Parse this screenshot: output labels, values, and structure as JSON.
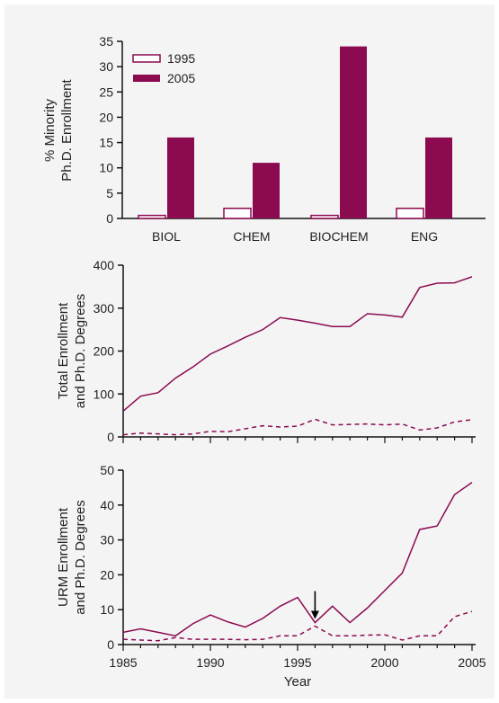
{
  "colors": {
    "accent": "#8b0a50",
    "panel_bg": "#f4f4f4",
    "axis": "#111111"
  },
  "chart_data": [
    {
      "type": "bar",
      "ylabel_lines": [
        "% Minority",
        "Ph.D. Enrollment"
      ],
      "ylim": [
        0,
        35
      ],
      "yticks": [
        "0",
        "5",
        "10",
        "15",
        "20",
        "25",
        "30",
        "35"
      ],
      "categories": [
        "BIOL",
        "CHEM",
        "BIOCHEM",
        "ENG"
      ],
      "series": [
        {
          "name": "1995",
          "values": [
            0.6,
            2.0,
            0.6,
            2.0
          ],
          "style": "outline"
        },
        {
          "name": "2005",
          "values": [
            16,
            11,
            34,
            16
          ],
          "style": "filled"
        }
      ],
      "legend": "top-left",
      "grid": false
    },
    {
      "type": "line",
      "ylabel_lines": [
        "Total Enrollment",
        "and Ph.D. Degrees"
      ],
      "ylim": [
        0,
        400
      ],
      "yticks": [
        "0",
        "100",
        "200",
        "300",
        "400"
      ],
      "x": [
        1985,
        1986,
        1987,
        1988,
        1989,
        1990,
        1991,
        1992,
        1993,
        1994,
        1995,
        1996,
        1997,
        1998,
        1999,
        2000,
        2001,
        2002,
        2003,
        2004,
        2005
      ],
      "series": [
        {
          "style": "solid",
          "values": [
            60,
            95,
            103,
            137,
            163,
            193,
            212,
            232,
            250,
            278,
            272,
            265,
            257,
            257,
            287,
            284,
            279,
            348,
            358,
            359,
            373
          ]
        },
        {
          "style": "dashed",
          "values": [
            5,
            9,
            7,
            5,
            7,
            13,
            12,
            19,
            26,
            23,
            25,
            41,
            28,
            29,
            30,
            28,
            30,
            16,
            21,
            35,
            40
          ]
        }
      ],
      "grid": false
    },
    {
      "type": "line",
      "ylabel_lines": [
        "URM Enrollment",
        "and Ph.D. Degrees"
      ],
      "xlabel": "Year",
      "ylim": [
        0,
        50
      ],
      "yticks": [
        "0",
        "10",
        "20",
        "30",
        "40",
        "50"
      ],
      "xlim": [
        1985,
        2005
      ],
      "xticks": [
        "1985",
        "1990",
        "1995",
        "2000",
        "2005"
      ],
      "x": [
        1985,
        1986,
        1987,
        1988,
        1989,
        1990,
        1991,
        1992,
        1993,
        1994,
        1995,
        1996,
        1997,
        1998,
        1999,
        2000,
        2001,
        2002,
        2003,
        2004,
        2005
      ],
      "series": [
        {
          "style": "solid",
          "values": [
            3.5,
            4.5,
            3.5,
            2.5,
            6.0,
            8.5,
            6.5,
            5.0,
            7.5,
            11.0,
            13.5,
            6.3,
            11.0,
            6.3,
            10.5,
            15.5,
            20.5,
            33.0,
            34.0,
            43.0,
            46.5
          ]
        },
        {
          "style": "dashed",
          "values": [
            1.5,
            1.3,
            1.1,
            2.0,
            1.5,
            1.5,
            1.5,
            1.4,
            1.5,
            2.5,
            2.5,
            5.3,
            2.5,
            2.5,
            2.7,
            2.8,
            1.3,
            2.5,
            2.5,
            8.0,
            9.5
          ]
        }
      ],
      "annotations": [
        {
          "type": "arrow",
          "x": 1996,
          "y": 6.3
        }
      ],
      "grid": false
    }
  ]
}
